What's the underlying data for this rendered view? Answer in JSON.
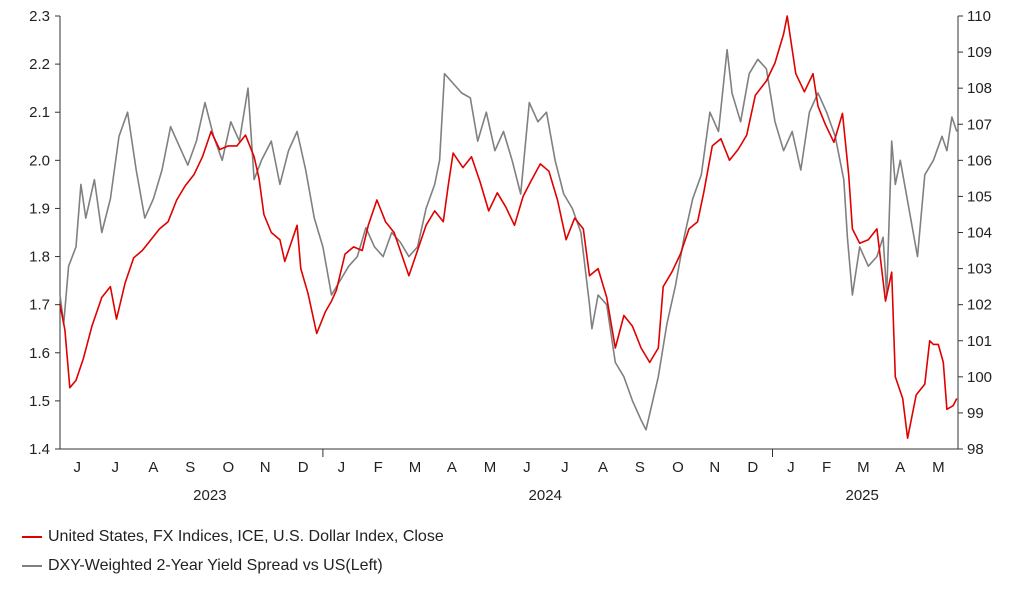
{
  "chart_data": {
    "type": "line",
    "x_range": [
      "2023-06-01",
      "2025-06-01"
    ],
    "y_left": {
      "min": 1.4,
      "max": 2.3,
      "ticks": [
        "1.4",
        "1.5",
        "1.6",
        "1.7",
        "1.8",
        "1.9",
        "2.0",
        "2.1",
        "2.2",
        "2.3"
      ]
    },
    "y_right": {
      "min": 98,
      "max": 110,
      "ticks": [
        "98",
        "99",
        "100",
        "101",
        "102",
        "103",
        "104",
        "105",
        "106",
        "107",
        "108",
        "109",
        "110"
      ]
    },
    "x_month_labels": [
      {
        "date": "2023-06-15",
        "label": "J"
      },
      {
        "date": "2023-07-16",
        "label": "J"
      },
      {
        "date": "2023-08-16",
        "label": "A"
      },
      {
        "date": "2023-09-15",
        "label": "S"
      },
      {
        "date": "2023-10-16",
        "label": "O"
      },
      {
        "date": "2023-11-15",
        "label": "N"
      },
      {
        "date": "2023-12-16",
        "label": "D"
      },
      {
        "date": "2024-01-16",
        "label": "J"
      },
      {
        "date": "2024-02-15",
        "label": "F"
      },
      {
        "date": "2024-03-16",
        "label": "M"
      },
      {
        "date": "2024-04-15",
        "label": "A"
      },
      {
        "date": "2024-05-16",
        "label": "M"
      },
      {
        "date": "2024-06-15",
        "label": "J"
      },
      {
        "date": "2024-07-16",
        "label": "J"
      },
      {
        "date": "2024-08-16",
        "label": "A"
      },
      {
        "date": "2024-09-15",
        "label": "S"
      },
      {
        "date": "2024-10-16",
        "label": "O"
      },
      {
        "date": "2024-11-15",
        "label": "N"
      },
      {
        "date": "2024-12-16",
        "label": "D"
      },
      {
        "date": "2025-01-16",
        "label": "J"
      },
      {
        "date": "2025-02-14",
        "label": "F"
      },
      {
        "date": "2025-03-16",
        "label": "M"
      },
      {
        "date": "2025-04-15",
        "label": "A"
      },
      {
        "date": "2025-05-16",
        "label": "M"
      }
    ],
    "x_year_labels": [
      {
        "date": "2023-10-01",
        "label": "2023"
      },
      {
        "date": "2024-06-30",
        "label": "2024"
      },
      {
        "date": "2025-03-15",
        "label": "2025"
      }
    ],
    "year_dividers": [
      "2024-01-01",
      "2025-01-01"
    ],
    "grid": false,
    "legend_position": "bottom-left",
    "series": [
      {
        "name": "United States, FX Indices, ICE, U.S. Dollar Index, Close",
        "axis": "right",
        "color": "#e00000",
        "points": [
          [
            "2023-06-01",
            102.0
          ],
          [
            "2023-06-05",
            101.3
          ],
          [
            "2023-06-09",
            99.7
          ],
          [
            "2023-06-14",
            99.9
          ],
          [
            "2023-06-20",
            100.5
          ],
          [
            "2023-06-27",
            101.4
          ],
          [
            "2023-07-05",
            102.2
          ],
          [
            "2023-07-12",
            102.5
          ],
          [
            "2023-07-17",
            101.6
          ],
          [
            "2023-07-24",
            102.6
          ],
          [
            "2023-07-31",
            103.3
          ],
          [
            "2023-08-07",
            103.5
          ],
          [
            "2023-08-14",
            103.8
          ],
          [
            "2023-08-21",
            104.1
          ],
          [
            "2023-08-28",
            104.3
          ],
          [
            "2023-09-04",
            104.9
          ],
          [
            "2023-09-11",
            105.3
          ],
          [
            "2023-09-18",
            105.6
          ],
          [
            "2023-09-25",
            106.1
          ],
          [
            "2023-10-02",
            106.8
          ],
          [
            "2023-10-09",
            106.3
          ],
          [
            "2023-10-16",
            106.4
          ],
          [
            "2023-10-23",
            106.4
          ],
          [
            "2023-10-30",
            106.7
          ],
          [
            "2023-11-06",
            106.1
          ],
          [
            "2023-11-10",
            105.5
          ],
          [
            "2023-11-14",
            104.5
          ],
          [
            "2023-11-20",
            104.0
          ],
          [
            "2023-11-27",
            103.8
          ],
          [
            "2023-12-01",
            103.2
          ],
          [
            "2023-12-07",
            103.8
          ],
          [
            "2023-12-11",
            104.2
          ],
          [
            "2023-12-14",
            103.0
          ],
          [
            "2023-12-20",
            102.3
          ],
          [
            "2023-12-27",
            101.2
          ],
          [
            "2024-01-03",
            101.8
          ],
          [
            "2024-01-08",
            102.1
          ],
          [
            "2024-01-12",
            102.4
          ],
          [
            "2024-01-19",
            103.4
          ],
          [
            "2024-01-26",
            103.6
          ],
          [
            "2024-02-02",
            103.5
          ],
          [
            "2024-02-07",
            104.2
          ],
          [
            "2024-02-14",
            104.9
          ],
          [
            "2024-02-21",
            104.3
          ],
          [
            "2024-02-28",
            104.0
          ],
          [
            "2024-03-05",
            103.4
          ],
          [
            "2024-03-11",
            102.8
          ],
          [
            "2024-03-18",
            103.5
          ],
          [
            "2024-03-25",
            104.2
          ],
          [
            "2024-04-01",
            104.6
          ],
          [
            "2024-04-08",
            104.3
          ],
          [
            "2024-04-12",
            105.3
          ],
          [
            "2024-04-16",
            106.2
          ],
          [
            "2024-04-24",
            105.8
          ],
          [
            "2024-05-01",
            106.1
          ],
          [
            "2024-05-08",
            105.4
          ],
          [
            "2024-05-15",
            104.6
          ],
          [
            "2024-05-22",
            105.1
          ],
          [
            "2024-05-29",
            104.7
          ],
          [
            "2024-06-05",
            104.2
          ],
          [
            "2024-06-12",
            105.0
          ],
          [
            "2024-06-18",
            105.4
          ],
          [
            "2024-06-26",
            105.9
          ],
          [
            "2024-07-03",
            105.7
          ],
          [
            "2024-07-10",
            104.9
          ],
          [
            "2024-07-17",
            103.8
          ],
          [
            "2024-07-24",
            104.4
          ],
          [
            "2024-07-31",
            104.1
          ],
          [
            "2024-08-05",
            102.8
          ],
          [
            "2024-08-12",
            103.0
          ],
          [
            "2024-08-19",
            102.2
          ],
          [
            "2024-08-26",
            100.8
          ],
          [
            "2024-09-02",
            101.7
          ],
          [
            "2024-09-09",
            101.4
          ],
          [
            "2024-09-16",
            100.8
          ],
          [
            "2024-09-23",
            100.4
          ],
          [
            "2024-09-30",
            100.8
          ],
          [
            "2024-10-04",
            102.5
          ],
          [
            "2024-10-11",
            102.9
          ],
          [
            "2024-10-18",
            103.4
          ],
          [
            "2024-10-25",
            104.1
          ],
          [
            "2024-11-01",
            104.3
          ],
          [
            "2024-11-06",
            105.1
          ],
          [
            "2024-11-13",
            106.4
          ],
          [
            "2024-11-20",
            106.6
          ],
          [
            "2024-11-27",
            106.0
          ],
          [
            "2024-12-04",
            106.3
          ],
          [
            "2024-12-11",
            106.7
          ],
          [
            "2024-12-18",
            107.8
          ],
          [
            "2024-12-27",
            108.2
          ],
          [
            "2025-01-03",
            108.7
          ],
          [
            "2025-01-10",
            109.5
          ],
          [
            "2025-01-13",
            110.0
          ],
          [
            "2025-01-20",
            108.4
          ],
          [
            "2025-01-27",
            107.9
          ],
          [
            "2025-02-03",
            108.4
          ],
          [
            "2025-02-07",
            107.5
          ],
          [
            "2025-02-13",
            107.0
          ],
          [
            "2025-02-20",
            106.5
          ],
          [
            "2025-02-27",
            107.3
          ],
          [
            "2025-03-04",
            105.6
          ],
          [
            "2025-03-07",
            104.1
          ],
          [
            "2025-03-13",
            103.7
          ],
          [
            "2025-03-20",
            103.8
          ],
          [
            "2025-03-27",
            104.1
          ],
          [
            "2025-04-03",
            102.1
          ],
          [
            "2025-04-08",
            102.9
          ],
          [
            "2025-04-11",
            100.0
          ],
          [
            "2025-04-17",
            99.4
          ],
          [
            "2025-04-21",
            98.3
          ],
          [
            "2025-04-28",
            99.5
          ],
          [
            "2025-05-05",
            99.8
          ],
          [
            "2025-05-09",
            101.0
          ],
          [
            "2025-05-12",
            100.9
          ],
          [
            "2025-05-16",
            100.9
          ],
          [
            "2025-05-20",
            100.4
          ],
          [
            "2025-05-23",
            99.1
          ],
          [
            "2025-05-28",
            99.2
          ],
          [
            "2025-05-31",
            99.4
          ]
        ]
      },
      {
        "name": "DXY-Weighted 2-Year Yield Spread vs US(Left)",
        "axis": "left",
        "color": "#808080",
        "points": [
          [
            "2023-06-01",
            1.72
          ],
          [
            "2023-06-04",
            1.66
          ],
          [
            "2023-06-08",
            1.78
          ],
          [
            "2023-06-14",
            1.82
          ],
          [
            "2023-06-18",
            1.95
          ],
          [
            "2023-06-22",
            1.88
          ],
          [
            "2023-06-29",
            1.96
          ],
          [
            "2023-07-05",
            1.85
          ],
          [
            "2023-07-12",
            1.92
          ],
          [
            "2023-07-19",
            2.05
          ],
          [
            "2023-07-26",
            2.1
          ],
          [
            "2023-08-02",
            1.98
          ],
          [
            "2023-08-09",
            1.88
          ],
          [
            "2023-08-16",
            1.92
          ],
          [
            "2023-08-23",
            1.98
          ],
          [
            "2023-08-30",
            2.07
          ],
          [
            "2023-09-06",
            2.03
          ],
          [
            "2023-09-13",
            1.99
          ],
          [
            "2023-09-20",
            2.04
          ],
          [
            "2023-09-27",
            2.12
          ],
          [
            "2023-10-04",
            2.05
          ],
          [
            "2023-10-11",
            2.0
          ],
          [
            "2023-10-18",
            2.08
          ],
          [
            "2023-10-25",
            2.04
          ],
          [
            "2023-11-01",
            2.15
          ],
          [
            "2023-11-06",
            1.96
          ],
          [
            "2023-11-12",
            2.0
          ],
          [
            "2023-11-20",
            2.04
          ],
          [
            "2023-11-27",
            1.95
          ],
          [
            "2023-12-04",
            2.02
          ],
          [
            "2023-12-11",
            2.06
          ],
          [
            "2023-12-18",
            1.98
          ],
          [
            "2023-12-25",
            1.88
          ],
          [
            "2024-01-01",
            1.82
          ],
          [
            "2024-01-08",
            1.72
          ],
          [
            "2024-01-15",
            1.75
          ],
          [
            "2024-01-22",
            1.78
          ],
          [
            "2024-01-29",
            1.8
          ],
          [
            "2024-02-05",
            1.86
          ],
          [
            "2024-02-12",
            1.82
          ],
          [
            "2024-02-19",
            1.8
          ],
          [
            "2024-02-26",
            1.85
          ],
          [
            "2024-03-04",
            1.83
          ],
          [
            "2024-03-11",
            1.8
          ],
          [
            "2024-03-18",
            1.82
          ],
          [
            "2024-03-25",
            1.9
          ],
          [
            "2024-04-01",
            1.95
          ],
          [
            "2024-04-05",
            2.0
          ],
          [
            "2024-04-09",
            2.18
          ],
          [
            "2024-04-16",
            2.16
          ],
          [
            "2024-04-23",
            2.14
          ],
          [
            "2024-04-30",
            2.13
          ],
          [
            "2024-05-06",
            2.04
          ],
          [
            "2024-05-13",
            2.1
          ],
          [
            "2024-05-20",
            2.02
          ],
          [
            "2024-05-27",
            2.06
          ],
          [
            "2024-06-03",
            2.0
          ],
          [
            "2024-06-10",
            1.93
          ],
          [
            "2024-06-17",
            2.12
          ],
          [
            "2024-06-24",
            2.08
          ],
          [
            "2024-07-01",
            2.1
          ],
          [
            "2024-07-08",
            2.0
          ],
          [
            "2024-07-15",
            1.93
          ],
          [
            "2024-07-22",
            1.9
          ],
          [
            "2024-07-29",
            1.85
          ],
          [
            "2024-08-05",
            1.7
          ],
          [
            "2024-08-07",
            1.65
          ],
          [
            "2024-08-12",
            1.72
          ],
          [
            "2024-08-19",
            1.7
          ],
          [
            "2024-08-26",
            1.58
          ],
          [
            "2024-09-02",
            1.55
          ],
          [
            "2024-09-09",
            1.5
          ],
          [
            "2024-09-16",
            1.46
          ],
          [
            "2024-09-20",
            1.44
          ],
          [
            "2024-09-30",
            1.55
          ],
          [
            "2024-10-07",
            1.66
          ],
          [
            "2024-10-14",
            1.74
          ],
          [
            "2024-10-21",
            1.84
          ],
          [
            "2024-10-28",
            1.92
          ],
          [
            "2024-11-04",
            1.97
          ],
          [
            "2024-11-11",
            2.1
          ],
          [
            "2024-11-18",
            2.06
          ],
          [
            "2024-11-25",
            2.23
          ],
          [
            "2024-11-29",
            2.14
          ],
          [
            "2024-12-06",
            2.08
          ],
          [
            "2024-12-13",
            2.18
          ],
          [
            "2024-12-20",
            2.21
          ],
          [
            "2024-12-27",
            2.19
          ],
          [
            "2025-01-03",
            2.08
          ],
          [
            "2025-01-10",
            2.02
          ],
          [
            "2025-01-17",
            2.06
          ],
          [
            "2025-01-24",
            1.98
          ],
          [
            "2025-01-31",
            2.1
          ],
          [
            "2025-02-07",
            2.14
          ],
          [
            "2025-02-14",
            2.1
          ],
          [
            "2025-02-21",
            2.05
          ],
          [
            "2025-02-28",
            1.96
          ],
          [
            "2025-03-03",
            1.84
          ],
          [
            "2025-03-07",
            1.72
          ],
          [
            "2025-03-13",
            1.82
          ],
          [
            "2025-03-20",
            1.78
          ],
          [
            "2025-03-27",
            1.8
          ],
          [
            "2025-04-01",
            1.84
          ],
          [
            "2025-04-04",
            1.72
          ],
          [
            "2025-04-08",
            2.04
          ],
          [
            "2025-04-11",
            1.95
          ],
          [
            "2025-04-15",
            2.0
          ],
          [
            "2025-04-22",
            1.9
          ],
          [
            "2025-04-29",
            1.8
          ],
          [
            "2025-05-05",
            1.97
          ],
          [
            "2025-05-12",
            2.0
          ],
          [
            "2025-05-19",
            2.05
          ],
          [
            "2025-05-23",
            2.02
          ],
          [
            "2025-05-27",
            2.09
          ],
          [
            "2025-05-31",
            2.06
          ]
        ]
      }
    ]
  }
}
